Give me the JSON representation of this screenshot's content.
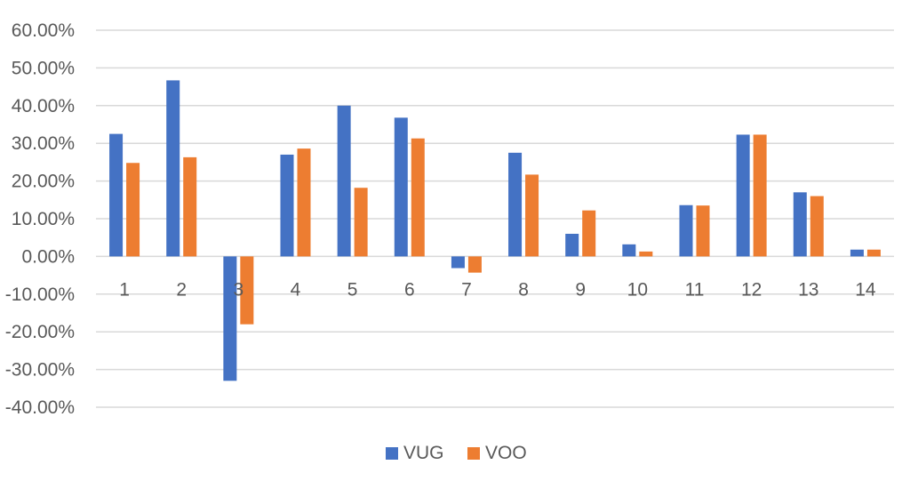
{
  "chart_data": {
    "type": "bar",
    "categories": [
      "1",
      "2",
      "3",
      "4",
      "5",
      "6",
      "7",
      "8",
      "9",
      "10",
      "11",
      "12",
      "13",
      "14"
    ],
    "series": [
      {
        "name": "VUG",
        "color": "#4472c4",
        "values": [
          32.5,
          46.7,
          -33.0,
          27.0,
          40.0,
          36.8,
          -3.1,
          27.5,
          6.0,
          3.2,
          13.6,
          32.3,
          17.0,
          1.8
        ]
      },
      {
        "name": "VOO",
        "color": "#ed7d31",
        "values": [
          24.8,
          26.3,
          -18.0,
          28.6,
          18.2,
          31.3,
          -4.3,
          21.7,
          12.2,
          1.3,
          13.5,
          32.3,
          16.0,
          1.8
        ]
      }
    ],
    "y_ticks": [
      "60.00%",
      "50.00%",
      "40.00%",
      "30.00%",
      "20.00%",
      "10.00%",
      "0.00%",
      "-10.00%",
      "-20.00%",
      "-30.00%",
      "-40.00%"
    ],
    "ylim": [
      -40,
      60
    ],
    "grid": true,
    "legend_position": "bottom",
    "xlabel": "",
    "ylabel": "",
    "title": ""
  }
}
